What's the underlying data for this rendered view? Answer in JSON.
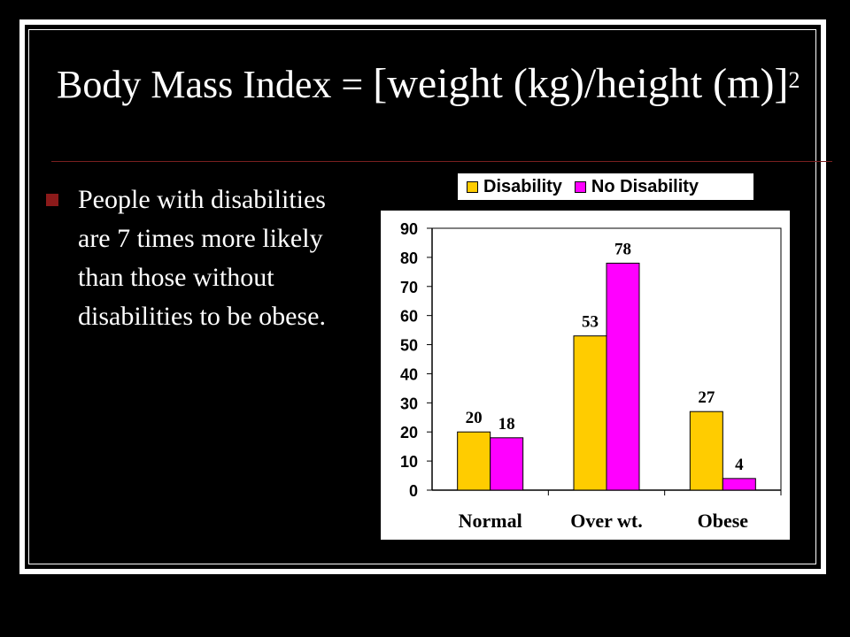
{
  "slide": {
    "title_main": "Body Mass Index = ",
    "title_formula": "[weight (kg)/height (m)]",
    "title_superscript": "2",
    "bullet": "People with disabilities are 7 times more likely than those without disabilities to be obese."
  },
  "colors": {
    "background": "#000000",
    "disability": "#ffcc00",
    "no_disability": "#ff00ff",
    "bullet": "#8b1a1a"
  },
  "chart_data": {
    "type": "bar",
    "categories": [
      "Normal",
      "Over wt.",
      "Obese"
    ],
    "series": [
      {
        "name": "Disability",
        "values": [
          20,
          53,
          27
        ]
      },
      {
        "name": "No Disability",
        "values": [
          18,
          78,
          4
        ]
      }
    ],
    "ylim": [
      0,
      90
    ],
    "yticks": [
      0,
      10,
      20,
      30,
      40,
      50,
      60,
      70,
      80,
      90
    ],
    "legend": "top",
    "grid": false
  }
}
